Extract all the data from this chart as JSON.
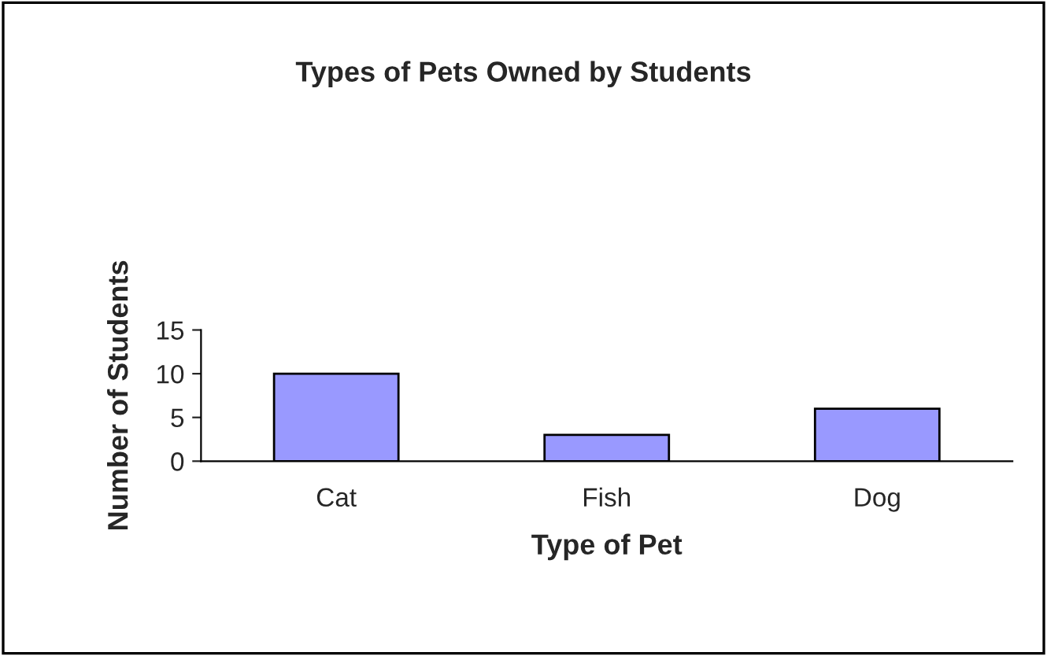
{
  "chart_data": {
    "type": "bar",
    "title": "Types of Pets Owned by Students",
    "xlabel": "Type of Pet",
    "ylabel": "Number of Students",
    "categories": [
      "Cat",
      "Fish",
      "Dog"
    ],
    "values": [
      10,
      3,
      6
    ],
    "color": "#9999ff",
    "ylim": [
      0,
      15
    ],
    "yticks": [
      0,
      5,
      10,
      15
    ],
    "grid": false,
    "legend": false
  }
}
